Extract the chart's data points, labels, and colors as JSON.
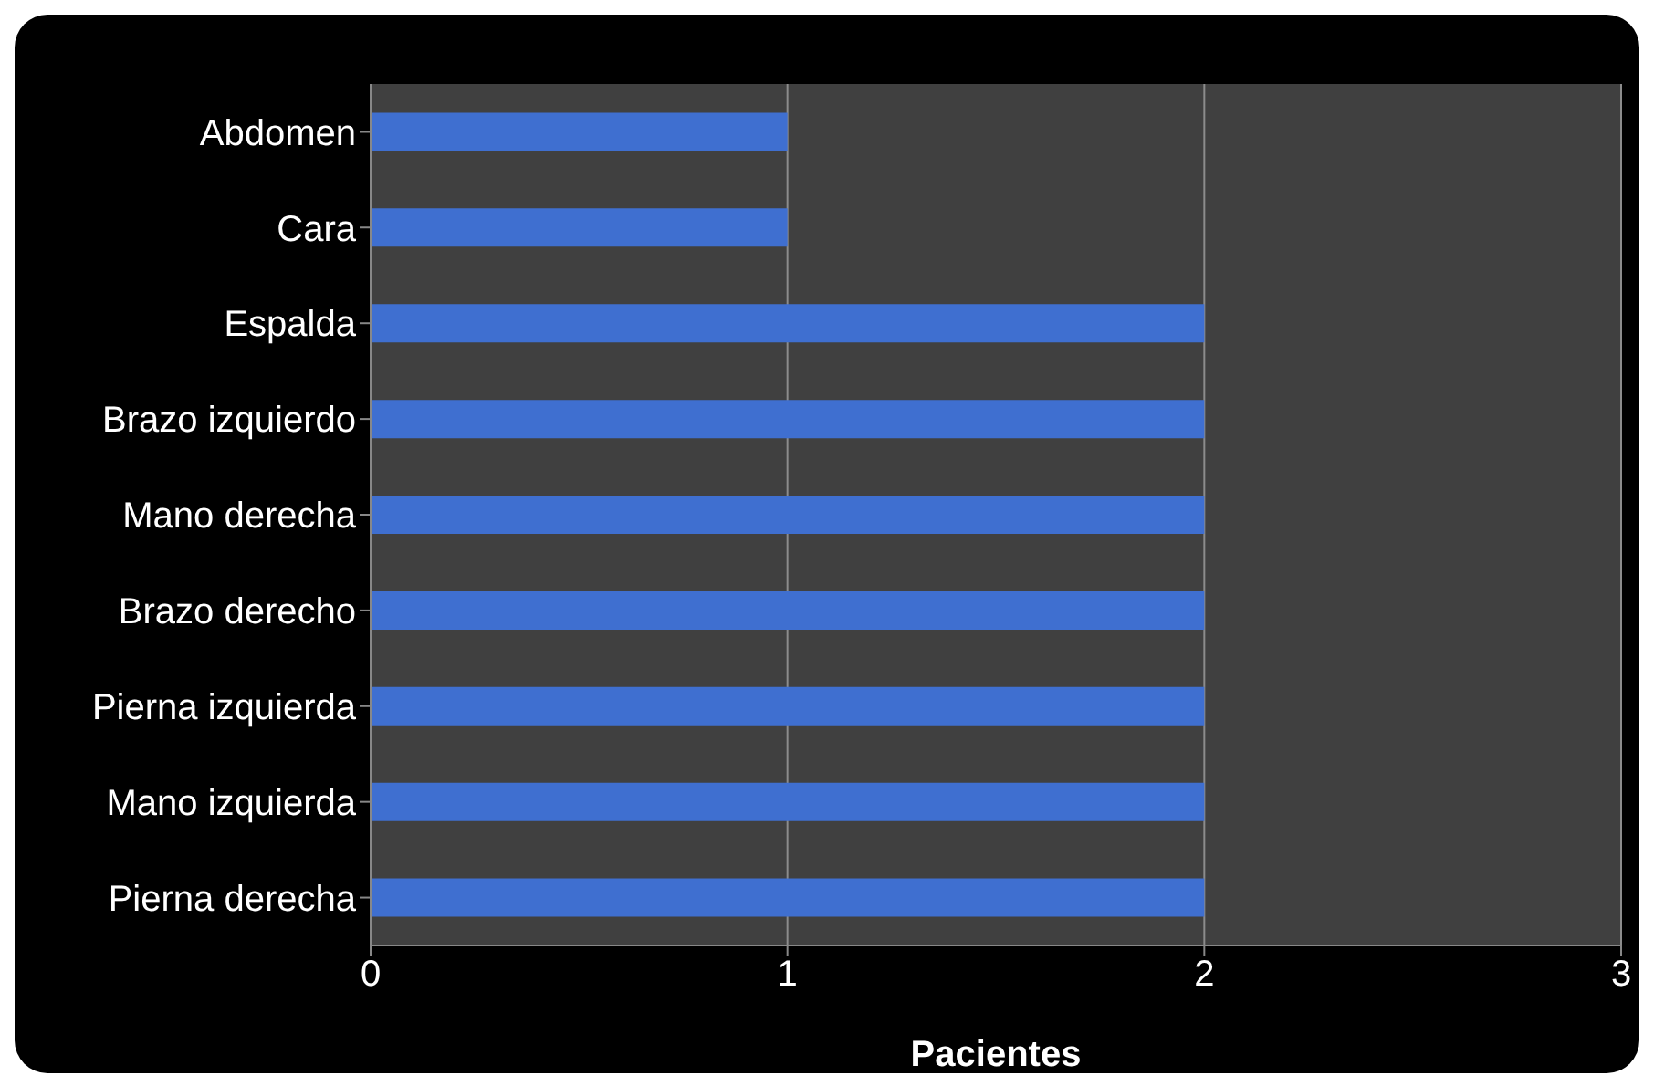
{
  "chart_data": {
    "type": "bar",
    "orientation": "horizontal",
    "xlabel": "Pacientes",
    "categories": [
      "Abdomen",
      "Cara",
      "Espalda",
      "Brazo izquierdo",
      "Mano derecha",
      "Brazo derecho",
      "Pierna izquierda",
      "Mano izquierda",
      "Pierna derecha"
    ],
    "values": [
      1,
      1,
      2,
      2,
      2,
      2,
      2,
      2,
      2
    ],
    "color": "#3f6fd0",
    "xlim": [
      0,
      3
    ],
    "xticks": [
      0,
      1,
      2,
      3
    ],
    "grid": "x"
  }
}
